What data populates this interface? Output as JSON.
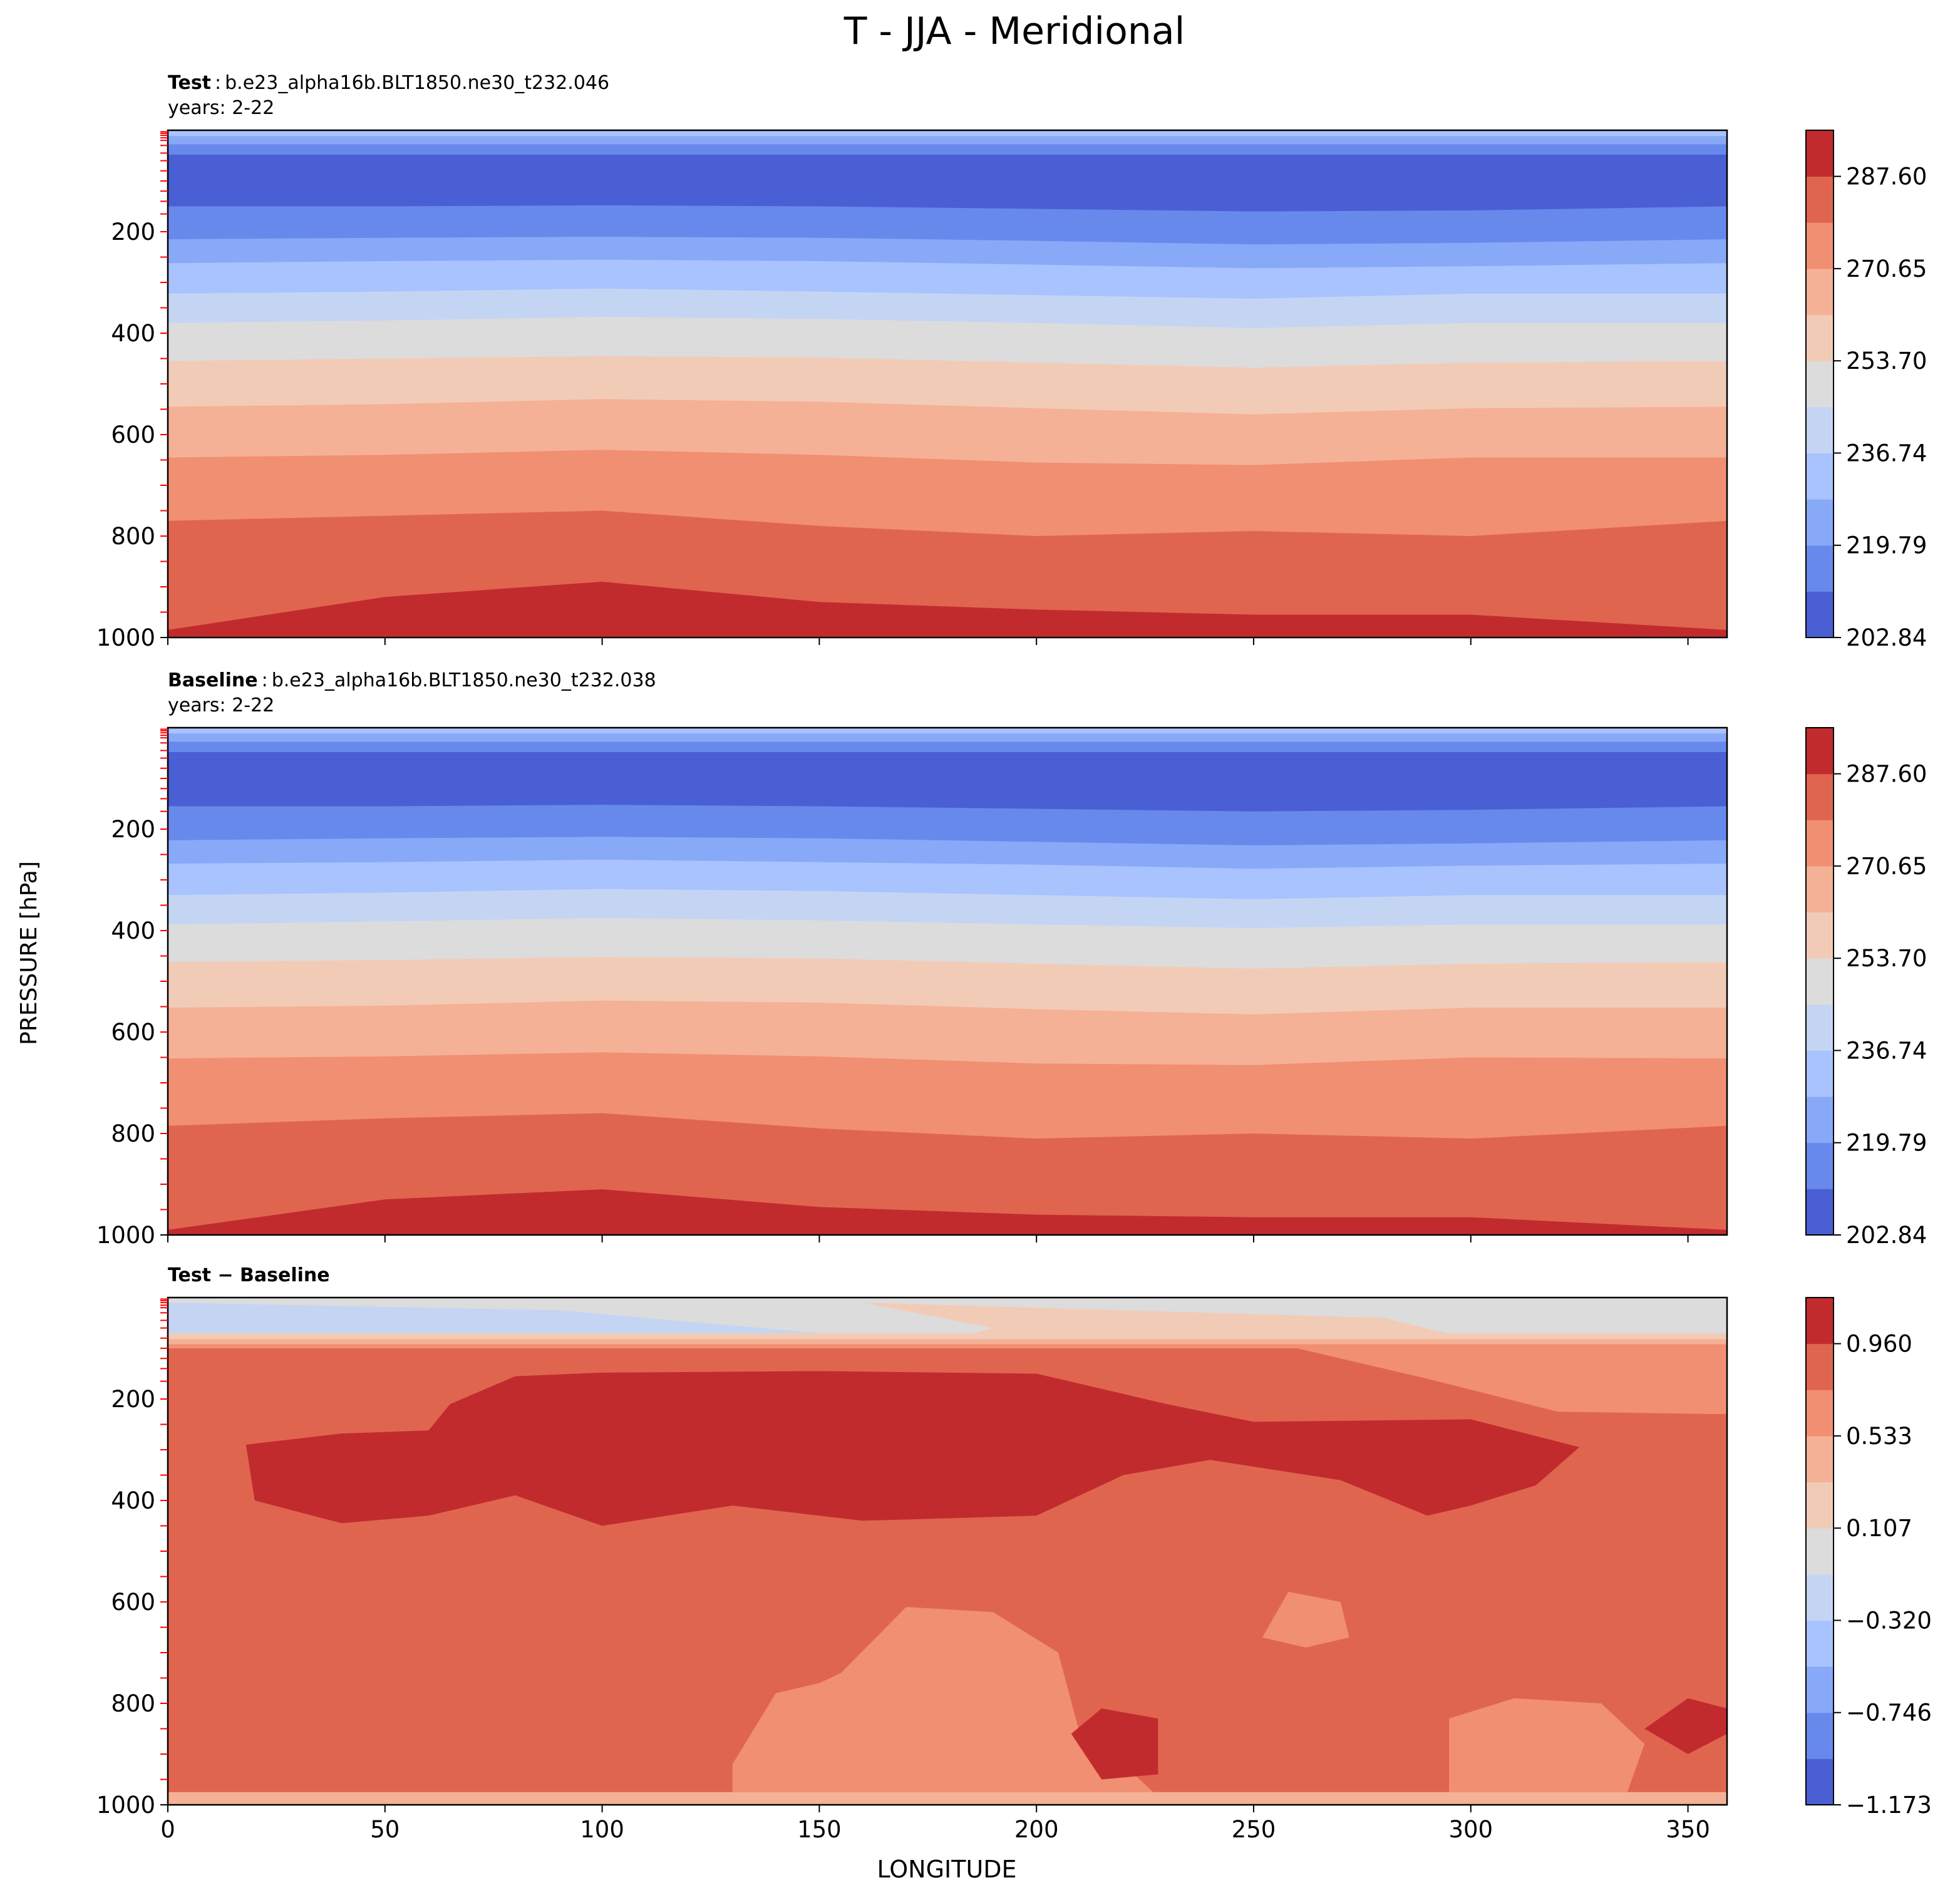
{
  "title": "T - JJA - Meridional",
  "shared_ylabel": "PRESSURE [hPa]",
  "shared_xlabel": "LONGITUDE",
  "colors": {
    "abs_levels": [
      "#4a5fd3",
      "#6889ec",
      "#88a9f8",
      "#a8c3fd",
      "#c4d5f4",
      "#dcdcdc",
      "#f2cbb7",
      "#f5b195",
      "#f18f72",
      "#e0654f",
      "#c22b2e"
    ],
    "diff_levels": [
      "#4a5fd3",
      "#6889ec",
      "#88a9f8",
      "#a8c3fd",
      "#c4d5f4",
      "#dcdcdc",
      "#f2cbb7",
      "#f5b195",
      "#f18f72",
      "#e0654f",
      "#c22b2e"
    ],
    "minor_tick": "#ff0000"
  },
  "panels": {
    "test": {
      "label_bold": "Test",
      "label_sep": ":",
      "case_name": "b.e23_alpha16b.BLT1850.ne30_t232.046",
      "years": "years: 2-22",
      "colorbar_ticks": [
        "287.60",
        "270.65",
        "253.70",
        "236.74",
        "219.79",
        "202.84"
      ]
    },
    "baseline": {
      "label_bold": "Baseline",
      "label_sep": ":",
      "case_name": "b.e23_alpha16b.BLT1850.ne30_t232.038",
      "years": "years: 2-22",
      "colorbar_ticks": [
        "287.60",
        "270.65",
        "253.70",
        "236.74",
        "219.79",
        "202.84"
      ]
    },
    "diff": {
      "label": "Test − Baseline",
      "colorbar_ticks": [
        "0.960",
        "0.533",
        "0.107",
        "−0.320",
        "−0.746",
        "−1.173"
      ]
    }
  },
  "chart_data": [
    {
      "type": "contourf",
      "name": "Test",
      "xlabel": "LONGITUDE",
      "ylabel": "PRESSURE [hPa]",
      "xlim": [
        0,
        359
      ],
      "ylim": [
        1000,
        0
      ],
      "x_ticks": [
        0,
        50,
        100,
        150,
        200,
        250,
        300,
        350
      ],
      "y_ticks": [
        200,
        400,
        600,
        800,
        1000
      ],
      "levels": [
        202.84,
        211.32,
        219.79,
        228.27,
        236.74,
        245.22,
        253.7,
        262.17,
        270.65,
        279.12,
        287.6,
        296.08
      ],
      "approx_field": "T increases from ~203 K near 50-150 hPa to ~295 K near 1000 hPa; roughly zonally uniform bands",
      "boundaries_hPa": [
        {
          "level": 211.32,
          "p": [
            150,
            150,
            148,
            150,
            155,
            160,
            158,
            150
          ]
        },
        {
          "level": 219.79,
          "p": [
            215,
            212,
            210,
            212,
            218,
            225,
            222,
            215
          ]
        },
        {
          "level": 228.27,
          "p": [
            262,
            258,
            255,
            258,
            265,
            272,
            268,
            262
          ]
        },
        {
          "level": 236.74,
          "p": [
            322,
            318,
            312,
            318,
            325,
            332,
            322,
            322
          ]
        },
        {
          "level": 245.22,
          "p": [
            380,
            375,
            368,
            372,
            380,
            390,
            380,
            380
          ]
        },
        {
          "level": 253.7,
          "p": [
            455,
            450,
            445,
            448,
            458,
            468,
            458,
            455
          ]
        },
        {
          "level": 262.17,
          "p": [
            545,
            540,
            530,
            535,
            548,
            560,
            548,
            545
          ]
        },
        {
          "level": 270.65,
          "p": [
            645,
            640,
            630,
            640,
            655,
            660,
            645,
            645
          ]
        },
        {
          "level": 279.12,
          "p": [
            770,
            760,
            750,
            780,
            800,
            790,
            800,
            770
          ]
        },
        {
          "level": 287.6,
          "p": [
            985,
            920,
            890,
            930,
            945,
            955,
            955,
            985
          ]
        }
      ]
    },
    {
      "type": "contourf",
      "name": "Baseline",
      "xlabel": "LONGITUDE",
      "ylabel": "PRESSURE [hPa]",
      "xlim": [
        0,
        359
      ],
      "ylim": [
        1000,
        0
      ],
      "x_ticks": [
        0,
        50,
        100,
        150,
        200,
        250,
        300,
        350
      ],
      "y_ticks": [
        200,
        400,
        600,
        800,
        1000
      ],
      "levels": [
        202.84,
        211.32,
        219.79,
        228.27,
        236.74,
        245.22,
        253.7,
        262.17,
        270.65,
        279.12,
        287.6,
        296.08
      ],
      "approx_field": "T increases from ~203 K near 50-150 hPa to ~295 K near 1000 hPa; slightly cooler than Test",
      "boundaries_hPa": [
        {
          "level": 211.32,
          "p": [
            155,
            155,
            152,
            155,
            160,
            165,
            162,
            155
          ]
        },
        {
          "level": 219.79,
          "p": [
            222,
            218,
            215,
            218,
            225,
            232,
            228,
            222
          ]
        },
        {
          "level": 228.27,
          "p": [
            268,
            265,
            260,
            265,
            270,
            278,
            272,
            268
          ]
        },
        {
          "level": 236.74,
          "p": [
            330,
            325,
            318,
            322,
            330,
            338,
            330,
            330
          ]
        },
        {
          "level": 245.22,
          "p": [
            388,
            382,
            375,
            380,
            388,
            395,
            388,
            388
          ]
        },
        {
          "level": 253.7,
          "p": [
            462,
            458,
            452,
            455,
            465,
            475,
            465,
            462
          ]
        },
        {
          "level": 262.17,
          "p": [
            552,
            548,
            538,
            542,
            555,
            565,
            552,
            552
          ]
        },
        {
          "level": 270.65,
          "p": [
            652,
            648,
            640,
            648,
            662,
            665,
            650,
            652
          ]
        },
        {
          "level": 279.12,
          "p": [
            785,
            770,
            760,
            790,
            810,
            800,
            810,
            785
          ]
        },
        {
          "level": 287.6,
          "p": [
            990,
            930,
            910,
            945,
            960,
            965,
            965,
            990
          ]
        }
      ]
    },
    {
      "type": "contourf",
      "name": "Test − Baseline",
      "xlabel": "LONGITUDE",
      "ylabel": "PRESSURE [hPa]",
      "xlim": [
        0,
        359
      ],
      "ylim": [
        1000,
        0
      ],
      "x_ticks": [
        0,
        50,
        100,
        150,
        200,
        250,
        300,
        350
      ],
      "y_ticks": [
        200,
        400,
        600,
        800,
        1000
      ],
      "levels": [
        -1.173,
        -0.96,
        -0.746,
        -0.533,
        -0.32,
        -0.107,
        0.107,
        0.32,
        0.533,
        0.746,
        0.96,
        1.173
      ],
      "approx_field": "mostly +0.75 to +0.96 K through the troposphere; >0.96 K core between ~150-450 hPa, 20-325 E; near 0 (-0.3 to +0.3) above ~80 hPa; +0.3 to +0.75 patches near surface"
    }
  ]
}
